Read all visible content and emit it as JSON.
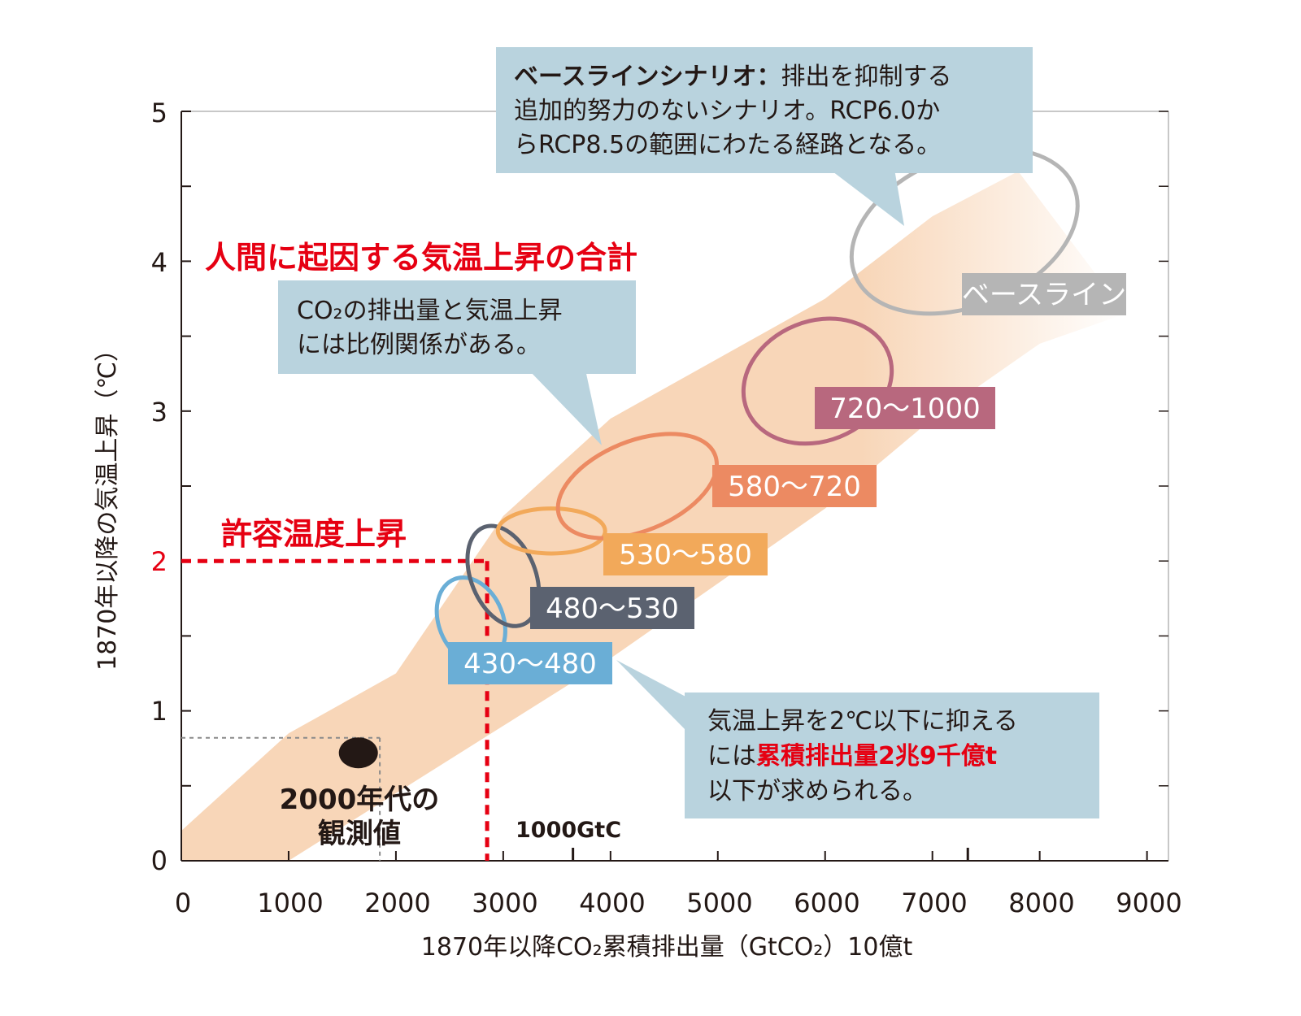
{
  "chart_data": {
    "type": "scatter",
    "xlabel": "1870年以降CO₂累積排出量（GtCO₂）10億t",
    "ylabel": "1870年以降の気温上昇（℃）",
    "xlim": [
      0,
      9200
    ],
    "ylim": [
      0,
      5
    ],
    "x_ticks": [
      "0",
      "1000",
      "2000",
      "3000",
      "4000",
      "5000",
      "6000",
      "7000",
      "8000",
      "9000"
    ],
    "y_ticks": [
      "0",
      "1",
      "2",
      "3",
      "4",
      "5"
    ],
    "band": {
      "upper": [
        [
          0,
          0.2
        ],
        [
          1000,
          0.85
        ],
        [
          2000,
          1.25
        ],
        [
          3000,
          2.3
        ],
        [
          4000,
          2.95
        ],
        [
          5000,
          3.35
        ],
        [
          6000,
          3.75
        ],
        [
          7000,
          4.3
        ],
        [
          7800,
          4.6
        ]
      ],
      "lower": [
        [
          0,
          0.0
        ],
        [
          1000,
          0.0
        ],
        [
          2000,
          0.45
        ],
        [
          3000,
          0.9
        ],
        [
          4000,
          1.35
        ],
        [
          5000,
          1.85
        ],
        [
          6000,
          2.35
        ],
        [
          7000,
          2.95
        ],
        [
          8000,
          3.45
        ],
        [
          8800,
          3.65
        ]
      ],
      "color": "#f8d6b8"
    },
    "scenarios": [
      {
        "label": "430〜480",
        "cx": 2700,
        "cy": 1.6,
        "rx": 300,
        "ry": 0.3,
        "color": "#6aaed6"
      },
      {
        "label": "480〜530",
        "cx": 3000,
        "cy": 1.9,
        "rx": 300,
        "ry": 0.35,
        "color": "#5b6270"
      },
      {
        "label": "530〜580",
        "cx": 3450,
        "cy": 2.2,
        "rx": 500,
        "ry": 0.15,
        "color": "#f2a95a"
      },
      {
        "label": "580〜720",
        "cx": 4250,
        "cy": 2.5,
        "rx": 780,
        "ry": 0.3,
        "color": "#ec8a62"
      },
      {
        "label": "720〜1000",
        "cx": 5930,
        "cy": 3.2,
        "rx": 710,
        "ry": 0.4,
        "color": "#b8687e"
      },
      {
        "label": "ベースライン",
        "cx": 7300,
        "cy": 4.2,
        "rx": 1100,
        "ry": 0.5,
        "color": "#b5b5b5"
      }
    ],
    "observed": {
      "x": 1650,
      "y": 0.72,
      "label_line1": "2000年代の",
      "label_line2": "観測値"
    },
    "observed_box": {
      "x": 1850,
      "y": 0.82
    },
    "threshold": {
      "x": 2850,
      "y": 2,
      "label": "許容温度上昇"
    },
    "gtc_tick_x": [
      3650,
      7330
    ],
    "gtc_label": "1000GtC",
    "main_title": "人間に起因する気温上昇の合計",
    "callouts": {
      "baseline": {
        "bold": "ベースラインシナリオ：",
        "line1": "排出を抑制する",
        "line2": "追加的努力のないシナリオ。RCP6.0か",
        "line3": "らRCP8.5の範囲にわたる経路となる。"
      },
      "proportional": {
        "line1": "CO₂の排出量と気温上昇",
        "line2": "には比例関係がある。"
      },
      "limit": {
        "line1": "気温上昇を2℃以下に抑える",
        "line2_pre": "には",
        "line2_em": "累積排出量2兆9千億t",
        "line3": "以下が求められる。"
      }
    },
    "colors": {
      "callout_bg": "#b9d3de",
      "red": "#e60012",
      "axis": "#231815"
    }
  }
}
